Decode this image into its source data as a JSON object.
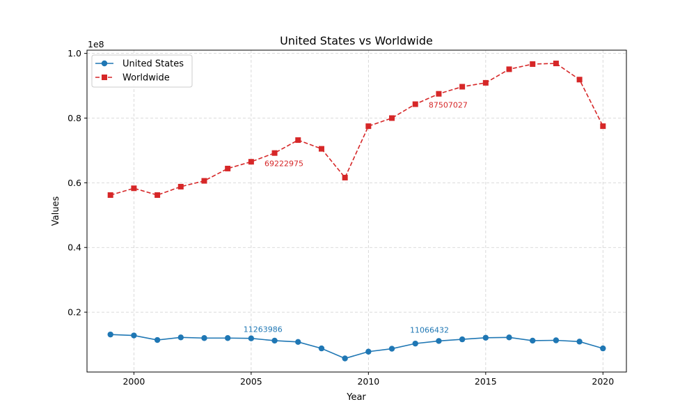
{
  "chart_data": {
    "type": "line",
    "title": "United States vs Worldwide",
    "xlabel": "Year",
    "ylabel": "Values",
    "y_scale_label": "1e8",
    "xlim": [
      1998,
      2021
    ],
    "ylim": [
      0.015,
      1.01
    ],
    "x_ticks": [
      2000,
      2005,
      2010,
      2015,
      2020
    ],
    "y_ticks": [
      0.2,
      0.4,
      0.6,
      0.8,
      1.0
    ],
    "y_tick_labels": [
      "0.2",
      "0.4",
      "0.6",
      "0.8",
      "1.0"
    ],
    "grid": true,
    "legend_position": "top-left",
    "x": [
      1999,
      2000,
      2001,
      2002,
      2003,
      2004,
      2005,
      2006,
      2007,
      2008,
      2009,
      2010,
      2011,
      2012,
      2013,
      2014,
      2015,
      2016,
      2017,
      2018,
      2019,
      2020
    ],
    "series": [
      {
        "name": "United States",
        "color": "#1f77b4",
        "marker": "circle",
        "line_style": "solid",
        "values": [
          0.131,
          0.128,
          0.114,
          0.122,
          0.12,
          0.12,
          0.119,
          0.112,
          0.108,
          0.088,
          0.057,
          0.078,
          0.087,
          0.103,
          0.111,
          0.116,
          0.121,
          0.122,
          0.112,
          0.113,
          0.109,
          0.088
        ]
      },
      {
        "name": "Worldwide",
        "color": "#d62728",
        "marker": "square",
        "line_style": "dashed",
        "values": [
          0.562,
          0.583,
          0.562,
          0.588,
          0.606,
          0.644,
          0.665,
          0.692,
          0.732,
          0.705,
          0.616,
          0.775,
          0.8,
          0.843,
          0.875,
          0.897,
          0.909,
          0.951,
          0.967,
          0.969,
          0.919,
          0.775
        ]
      }
    ],
    "annotations": [
      {
        "text": "11263986",
        "x": 2005.5,
        "y": 0.139,
        "series": 0
      },
      {
        "text": "11066432",
        "x": 2012.6,
        "y": 0.137,
        "series": 0
      },
      {
        "text": "69222975",
        "x": 2006.4,
        "y": 0.651,
        "series": 1
      },
      {
        "text": "87507027",
        "x": 2013.4,
        "y": 0.832,
        "series": 1
      }
    ]
  }
}
